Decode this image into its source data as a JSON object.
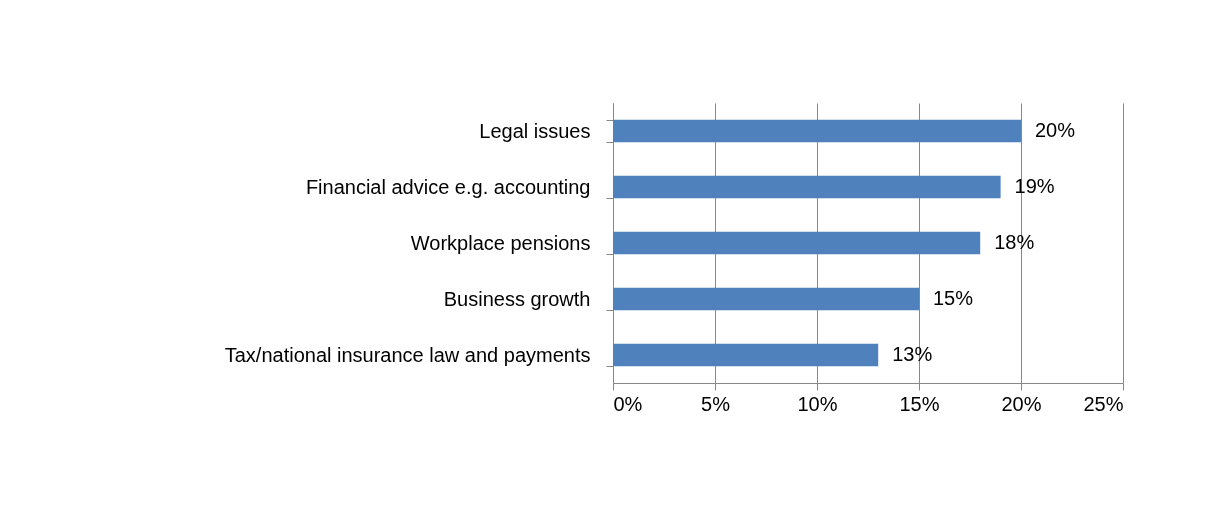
{
  "chart_data": {
    "type": "bar",
    "orientation": "horizontal",
    "categories": [
      "Legal issues",
      "Financial advice e.g. accounting",
      "Workplace pensions",
      "Business growth",
      "Tax/national insurance law and payments"
    ],
    "values": [
      20,
      19,
      18,
      15,
      13
    ],
    "color": "#4f81bd",
    "value_labels": [
      "20%",
      "19%",
      "18%",
      "15%",
      "13%"
    ],
    "xlim": [
      0,
      25
    ],
    "xticks": [
      {
        "value": 0,
        "label": "0%"
      },
      {
        "value": 5,
        "label": "5%"
      },
      {
        "value": 10,
        "label": "10%"
      },
      {
        "value": 15,
        "label": "15%"
      },
      {
        "value": 20,
        "label": "20%"
      },
      {
        "value": 25,
        "label": "25%"
      }
    ],
    "grid": "x"
  }
}
